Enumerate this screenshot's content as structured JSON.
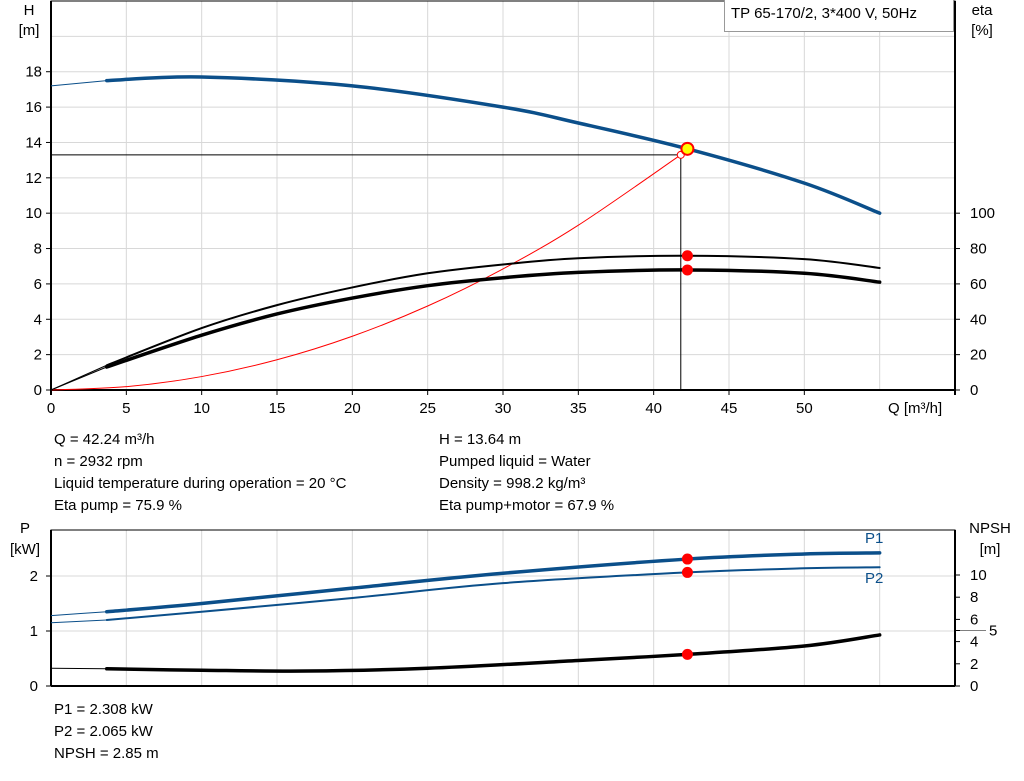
{
  "title": "TP 65-170/2, 3*400 V, 50Hz",
  "colors": {
    "head": "#0b4f8a",
    "eta": "#000000",
    "system": "#ff0000",
    "duty_point": "#ff0000",
    "operating_point_fill": "#ffff00",
    "grid": "#d8d8d8"
  },
  "chart_data": [
    {
      "type": "line",
      "ylabel_left": "H",
      "yunit_left": "[m]",
      "ylabel_right": "eta",
      "yunit_right": "[%]",
      "xlabel": "Q [m³/h]",
      "xlim": [
        0,
        60
      ],
      "ylim_left": [
        0,
        22
      ],
      "ylim_right": [
        0,
        220
      ],
      "xticks": [
        0,
        5,
        10,
        15,
        20,
        25,
        30,
        35,
        40,
        45,
        50
      ],
      "yticks_left": [
        0,
        2,
        4,
        6,
        8,
        10,
        12,
        14,
        16,
        18
      ],
      "yticks_right": [
        0,
        20,
        40,
        60,
        80,
        100
      ],
      "grid": true,
      "series": [
        {
          "id": "H",
          "axis": "left",
          "x": [
            0,
            3.7,
            10,
            20,
            30,
            35,
            42.24,
            50,
            55
          ],
          "y": [
            17.2,
            17.5,
            17.7,
            17.2,
            16.0,
            15.1,
            13.64,
            11.7,
            10.0
          ]
        },
        {
          "id": "eta_pump",
          "axis": "right",
          "x": [
            0,
            3.7,
            10,
            15,
            20,
            25,
            30,
            35,
            42.24,
            50,
            55
          ],
          "y": [
            0,
            14,
            35,
            48,
            58,
            66,
            71,
            74.5,
            75.9,
            74,
            69
          ]
        },
        {
          "id": "eta_pump_motor",
          "axis": "right",
          "x": [
            0,
            3.7,
            10,
            15,
            20,
            25,
            30,
            35,
            42.24,
            50,
            55
          ],
          "y": [
            0,
            13,
            31,
            43,
            52,
            59,
            63.5,
            66.5,
            67.9,
            66,
            61
          ]
        },
        {
          "id": "system",
          "axis": "left",
          "x": [
            0,
            5,
            10,
            15,
            20,
            25,
            30,
            35,
            41.8
          ],
          "y": [
            0,
            0.19,
            0.76,
            1.71,
            3.04,
            4.75,
            6.85,
            9.32,
            13.3
          ]
        }
      ],
      "duty_point": {
        "Q": 41.8,
        "H": 13.3
      },
      "operating_point": {
        "Q": 42.24,
        "H": 13.64,
        "eta_pump": 75.9,
        "eta_pump_motor": 67.9
      }
    },
    {
      "type": "line",
      "ylabel_left": "P",
      "yunit_left": "[kW]",
      "ylabel_right": "NPSH",
      "yunit_right": "[m]",
      "xlim": [
        0,
        60
      ],
      "ylim_left": [
        0,
        2.84
      ],
      "ylim_right": [
        0,
        14.1
      ],
      "yticks_left": [
        0,
        1,
        2
      ],
      "yticks_right": [
        0,
        2,
        4,
        5,
        6,
        8,
        10
      ],
      "grid": true,
      "series": [
        {
          "id": "P1",
          "name": "P1",
          "axis": "left",
          "x": [
            0,
            3.7,
            10,
            20,
            30,
            42.24,
            50,
            55
          ],
          "y": [
            1.28,
            1.35,
            1.5,
            1.78,
            2.05,
            2.308,
            2.4,
            2.42
          ]
        },
        {
          "id": "P2",
          "name": "P2",
          "axis": "left",
          "x": [
            0,
            3.7,
            10,
            20,
            30,
            42.24,
            50,
            55
          ],
          "y": [
            1.15,
            1.2,
            1.35,
            1.6,
            1.87,
            2.065,
            2.14,
            2.16
          ]
        },
        {
          "id": "NPSH",
          "axis": "right",
          "x": [
            0,
            3.7,
            10,
            17,
            25,
            35,
            42.24,
            50,
            55
          ],
          "y": [
            1.6,
            1.55,
            1.42,
            1.35,
            1.6,
            2.3,
            2.85,
            3.6,
            4.6
          ]
        }
      ],
      "operating_point": {
        "Q": 42.24,
        "P1": 2.308,
        "P2": 2.065,
        "NPSH": 2.85
      }
    }
  ],
  "info_left": [
    "Q = 42.24 m³/h",
    "n = 2932 rpm",
    "Liquid temperature during operation = 20 °C",
    "Eta pump = 75.9 %"
  ],
  "info_right": [
    "H = 13.64 m",
    "Pumped liquid = Water",
    "Density = 998.2 kg/m³",
    "Eta pump+motor = 67.9 %"
  ],
  "info_bottom": [
    "P1 = 2.308 kW",
    "P2 = 2.065 kW",
    "NPSH = 2.85 m"
  ]
}
